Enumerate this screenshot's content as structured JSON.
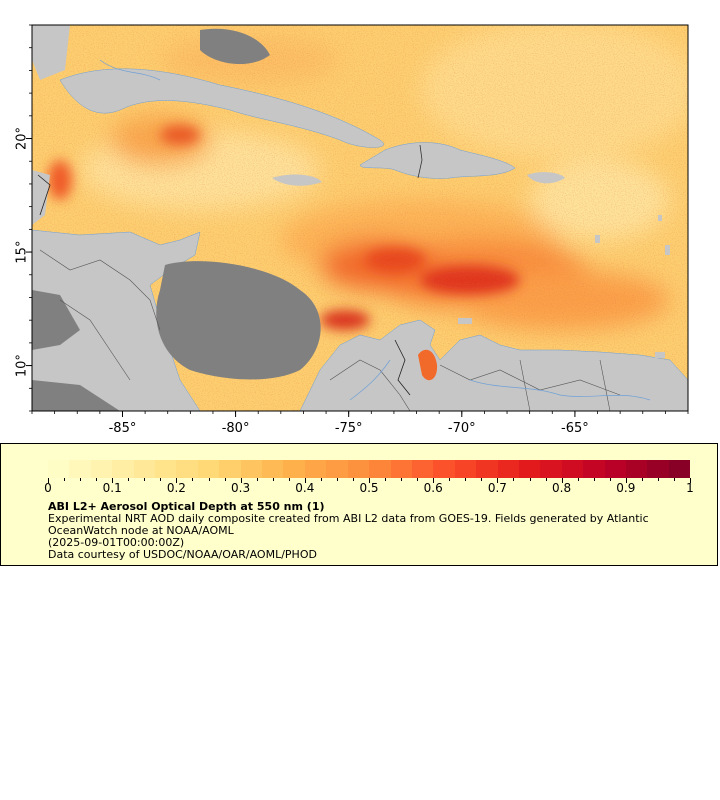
{
  "map": {
    "x_axis_labels": [
      "-85°",
      "-80°",
      "-75°",
      "-70°",
      "-65°"
    ],
    "x_axis_values": [
      -85,
      -80,
      -75,
      -70,
      -65
    ],
    "y_axis_labels": [
      "10°",
      "15°",
      "20°"
    ],
    "y_axis_values": [
      10,
      15,
      20
    ],
    "extent": {
      "lon_min": -89,
      "lon_max": -60,
      "lat_min": 8,
      "lat_max": 25
    },
    "colors": {
      "land": "#c6c6c6",
      "no_data": "#808080",
      "rivers": "#6fa0d6",
      "borders": "#555555"
    }
  },
  "colorbar": {
    "tick_labels": [
      "0",
      "0.1",
      "0.2",
      "0.3",
      "0.4",
      "0.5",
      "0.6",
      "0.7",
      "0.8",
      "0.9",
      "1"
    ],
    "tick_values": [
      0,
      0.1,
      0.2,
      0.3,
      0.4,
      0.5,
      0.6,
      0.7,
      0.8,
      0.9,
      1
    ],
    "range": [
      0,
      1
    ],
    "steps": 30,
    "color_stops": [
      "#ffffcc",
      "#ffeda0",
      "#fed976",
      "#feb24c",
      "#fd8d3c",
      "#fc4e2a",
      "#e31a1c",
      "#bd0026",
      "#800026"
    ]
  },
  "legend": {
    "title": "ABI L2+ Aerosol Optical Depth at 550 nm (1)",
    "description_line1": "Experimental NRT AOD daily composite created from ABI L2 data from GOES-19. Fields generated by Atlantic",
    "description_line2": "OceanWatch node at NOAA/AOML",
    "date": "(2025-09-01T00:00:00Z)",
    "credit": "Data courtesy of USDOC/NOAA/OAR/AOML/PHOD",
    "background": "#ffffcc"
  }
}
